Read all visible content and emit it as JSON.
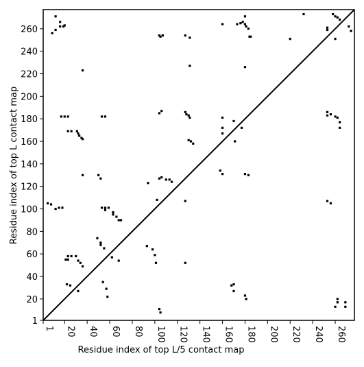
{
  "chart_data": {
    "type": "scatter",
    "xlabel": "Residue index of top L/5 contact map",
    "ylabel": "Residue index of top L contact map",
    "xlim": [
      1,
      277
    ],
    "ylim": [
      1,
      277
    ],
    "xticks": [
      1,
      20,
      40,
      60,
      80,
      100,
      120,
      140,
      160,
      180,
      200,
      220,
      240,
      260
    ],
    "yticks": [
      1,
      20,
      40,
      60,
      80,
      100,
      120,
      140,
      160,
      180,
      200,
      220,
      240,
      260
    ],
    "diagonal": true,
    "color": "#000000",
    "x": [
      9,
      12,
      12,
      16,
      16,
      19,
      20,
      104,
      105,
      107,
      127,
      131,
      131,
      36,
      180,
      180,
      178,
      181,
      183,
      184,
      185,
      176,
      173,
      160,
      180,
      232,
      220,
      253,
      253,
      258,
      260,
      262,
      264,
      260,
      272,
      274,
      17,
      20,
      23,
      23,
      26,
      31,
      32,
      33,
      35,
      36,
      53,
      56,
      104,
      106,
      127,
      128,
      130,
      131,
      130,
      132,
      134,
      160,
      160,
      160,
      171,
      170,
      177,
      36,
      104,
      106,
      110,
      113,
      115,
      94,
      50,
      52,
      5,
      8,
      12,
      15,
      18,
      102,
      127,
      53,
      56,
      59,
      56,
      63,
      63,
      66,
      68,
      70,
      158,
      160,
      180,
      183,
      49,
      52,
      52,
      55,
      93,
      98,
      100,
      101,
      21,
      23,
      26,
      30,
      23,
      32,
      34,
      36,
      22,
      25,
      32,
      54,
      57,
      58,
      62,
      68,
      127,
      104,
      105,
      168,
      170,
      170,
      180,
      181,
      260,
      262,
      262,
      269,
      269,
      253,
      253,
      256,
      260,
      262,
      264,
      264,
      253,
      256
    ],
    "y": [
      256,
      271,
      259,
      262,
      266,
      262,
      263,
      254,
      253,
      254,
      254,
      252,
      227,
      223,
      271,
      264,
      266,
      262,
      260,
      253,
      253,
      265,
      264,
      264,
      226,
      273,
      251,
      261,
      259,
      273,
      271,
      270,
      268,
      251,
      262,
      258,
      182,
      182,
      182,
      169,
      169,
      169,
      167,
      165,
      163,
      162,
      182,
      182,
      185,
      187,
      186,
      184,
      183,
      181,
      161,
      160,
      158,
      181,
      172,
      167,
      160,
      178,
      172,
      130,
      127,
      128,
      126,
      126,
      124,
      123,
      130,
      127,
      105,
      104,
      100,
      101,
      101,
      108,
      107,
      101,
      101,
      101,
      99,
      97,
      95,
      93,
      90,
      90,
      134,
      131,
      131,
      130,
      74,
      70,
      68,
      65,
      67,
      64,
      59,
      52,
      55,
      58,
      58,
      58,
      55,
      54,
      52,
      49,
      33,
      32,
      27,
      35,
      29,
      22,
      57,
      54,
      52,
      11,
      8,
      32,
      33,
      27,
      23,
      20,
      13,
      17,
      20,
      13,
      17,
      186,
      183,
      184,
      182,
      181,
      177,
      172,
      107,
      105
    ]
  }
}
